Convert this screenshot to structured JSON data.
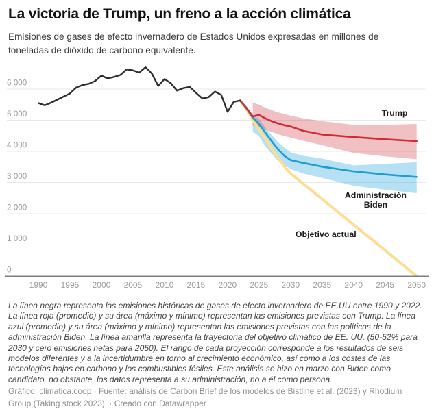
{
  "header": {
    "title": "La victoria de Trump, un freno a la acción climática",
    "subtitle": "Emisiones de gases de efecto invernadero de Estados Unidos expresadas en millones de toneladas de dióxido de carbono equivalente."
  },
  "chart_data": {
    "type": "line",
    "title": "La victoria de Trump, un freno a la acción climática",
    "unit": "millones de toneladas de CO2 equivalente",
    "grid": "horizontal",
    "legend_position": "direct-labels",
    "xlim": [
      1985,
      2051.5
    ],
    "ylim": [
      0,
      6950
    ],
    "x_ticks": [
      1990,
      1995,
      2000,
      2005,
      2010,
      2015,
      2020,
      2025,
      2030,
      2035,
      2040,
      2045,
      2050
    ],
    "y_ticks": [
      0,
      1000,
      2000,
      3000,
      4000,
      5000,
      6000
    ],
    "y_tick_labels": [
      "0",
      "1 000",
      "2 000",
      "3 000",
      "4 000",
      "5 000",
      "6 000"
    ],
    "colors": {
      "historical": "#2d2d2d",
      "trump_line": "#d02c35",
      "trump_band": "rgba(208,45,55,0.30)",
      "biden_line": "#1f9dcb",
      "biden_band": "rgba(80,181,226,0.42)",
      "target_line": "#fcdd92",
      "grid": "#e9e9e9",
      "axis": "#7e7e7e",
      "tick_text": "#9c9c9c"
    },
    "series": [
      {
        "id": "objetivo",
        "name": "Objetivo actual",
        "type": "line",
        "color": "#fcdd92",
        "width": 4,
        "points": [
          [
            2022,
            5630
          ],
          [
            2023,
            5350
          ],
          [
            2024,
            5000
          ],
          [
            2025,
            4700
          ],
          [
            2026,
            4400
          ],
          [
            2027,
            4100
          ],
          [
            2028,
            3800
          ],
          [
            2029,
            3520
          ],
          [
            2030,
            3300
          ],
          [
            2031,
            3130
          ],
          [
            2050,
            0
          ]
        ]
      },
      {
        "id": "biden",
        "name": "Administración Biden",
        "type": "line+band",
        "color": "#1f9dcb",
        "width": 2.6,
        "band_color": "rgba(80,181,226,0.42)",
        "points": [
          [
            2022,
            5630
          ],
          [
            2023,
            5380
          ],
          [
            2024,
            5080
          ],
          [
            2025,
            4880
          ],
          [
            2026,
            4600
          ],
          [
            2027,
            4330
          ],
          [
            2028,
            4070
          ],
          [
            2029,
            3860
          ],
          [
            2030,
            3720
          ],
          [
            2032,
            3630
          ],
          [
            2035,
            3510
          ],
          [
            2040,
            3360
          ],
          [
            2045,
            3260
          ],
          [
            2050,
            3180
          ]
        ],
        "band": [
          [
            2024,
            5180,
            4640
          ],
          [
            2025,
            5040,
            4480
          ],
          [
            2026,
            4760,
            4160
          ],
          [
            2028,
            4290,
            3700
          ],
          [
            2030,
            3970,
            3430
          ],
          [
            2032,
            3860,
            3290
          ],
          [
            2035,
            3770,
            3150
          ],
          [
            2040,
            3550,
            2900
          ],
          [
            2045,
            3600,
            2770
          ],
          [
            2050,
            3650,
            2660
          ]
        ]
      },
      {
        "id": "trump",
        "name": "Trump",
        "type": "line+band",
        "color": "#d02c35",
        "width": 2.6,
        "band_color": "rgba(208,45,55,0.30)",
        "points": [
          [
            2022,
            5630
          ],
          [
            2023,
            5400
          ],
          [
            2024,
            5120
          ],
          [
            2025,
            5170
          ],
          [
            2026,
            5060
          ],
          [
            2027,
            4970
          ],
          [
            2028,
            4900
          ],
          [
            2029,
            4840
          ],
          [
            2030,
            4800
          ],
          [
            2032,
            4660
          ],
          [
            2035,
            4540
          ],
          [
            2040,
            4460
          ],
          [
            2045,
            4390
          ],
          [
            2050,
            4330
          ]
        ],
        "band": [
          [
            2024,
            5560,
            4830
          ],
          [
            2025,
            5500,
            4780
          ],
          [
            2026,
            5400,
            4700
          ],
          [
            2028,
            5250,
            4550
          ],
          [
            2030,
            5150,
            4440
          ],
          [
            2032,
            5060,
            4340
          ],
          [
            2035,
            4970,
            4200
          ],
          [
            2040,
            4850,
            3950
          ],
          [
            2045,
            4850,
            3840
          ],
          [
            2050,
            4880,
            3750
          ]
        ]
      },
      {
        "id": "historico",
        "name": "Emisiones históricas (1990-2022)",
        "type": "line",
        "color": "#2d2d2d",
        "width": 2.4,
        "points": [
          [
            1990,
            5550
          ],
          [
            1991,
            5480
          ],
          [
            1992,
            5560
          ],
          [
            1993,
            5660
          ],
          [
            1994,
            5760
          ],
          [
            1995,
            5860
          ],
          [
            1996,
            6050
          ],
          [
            1997,
            6130
          ],
          [
            1998,
            6170
          ],
          [
            1999,
            6260
          ],
          [
            2000,
            6430
          ],
          [
            2001,
            6340
          ],
          [
            2002,
            6390
          ],
          [
            2003,
            6450
          ],
          [
            2004,
            6630
          ],
          [
            2005,
            6600
          ],
          [
            2006,
            6530
          ],
          [
            2007,
            6700
          ],
          [
            2008,
            6500
          ],
          [
            2009,
            6100
          ],
          [
            2010,
            6320
          ],
          [
            2011,
            6190
          ],
          [
            2012,
            5950
          ],
          [
            2013,
            6030
          ],
          [
            2014,
            6070
          ],
          [
            2015,
            5880
          ],
          [
            2016,
            5700
          ],
          [
            2017,
            5740
          ],
          [
            2018,
            5920
          ],
          [
            2019,
            5810
          ],
          [
            2020,
            5270
          ],
          [
            2021,
            5590
          ],
          [
            2022,
            5630
          ]
        ]
      }
    ],
    "annotations": [
      {
        "text": "Trump",
        "x": 2046.5,
        "y": 5230,
        "width": 80
      },
      {
        "text": "Administración Biden",
        "x": 2043.5,
        "y": 2430,
        "width": 124
      },
      {
        "text": "Objetivo actual",
        "x": 2035.6,
        "y": 1330,
        "width": 120
      }
    ]
  },
  "notes": "La línea negra representa las emisiones históricas de gases de efecto invernadero de EE.UU entre 1990 y 2022. La línea roja (promedio) y su área (máximo y mínimo) representan las emisiones previstas con Trump. La línea azul (promedio) y su área (máximo y mínimo) representan las emisiones previstas con las políticas de la administración Biden. La línea amarilla representa la trayectoria del objetivo climático de EE. UU. (50-52% para 2030 y cero emisiones netas para 2050). El rango de cada proyección corresponde a los resultados de seis modelos diferentes y a la incertidumbre en torno al crecimiento económico, así como a los costes de las tecnologías bajas en carbono y los combustibles fósiles. Este análisis se hizo en marzo con Biden como candidato, no obstante, los datos representa a su administración, no a él como persona.",
  "credit": "Gráfico: climatica.coop · Fuente: análisis de Carbon Brief de los modelos de Bistline et al. (2023) y Rhodium Group (Taking stock 2023). · Creado con Datawrapper"
}
